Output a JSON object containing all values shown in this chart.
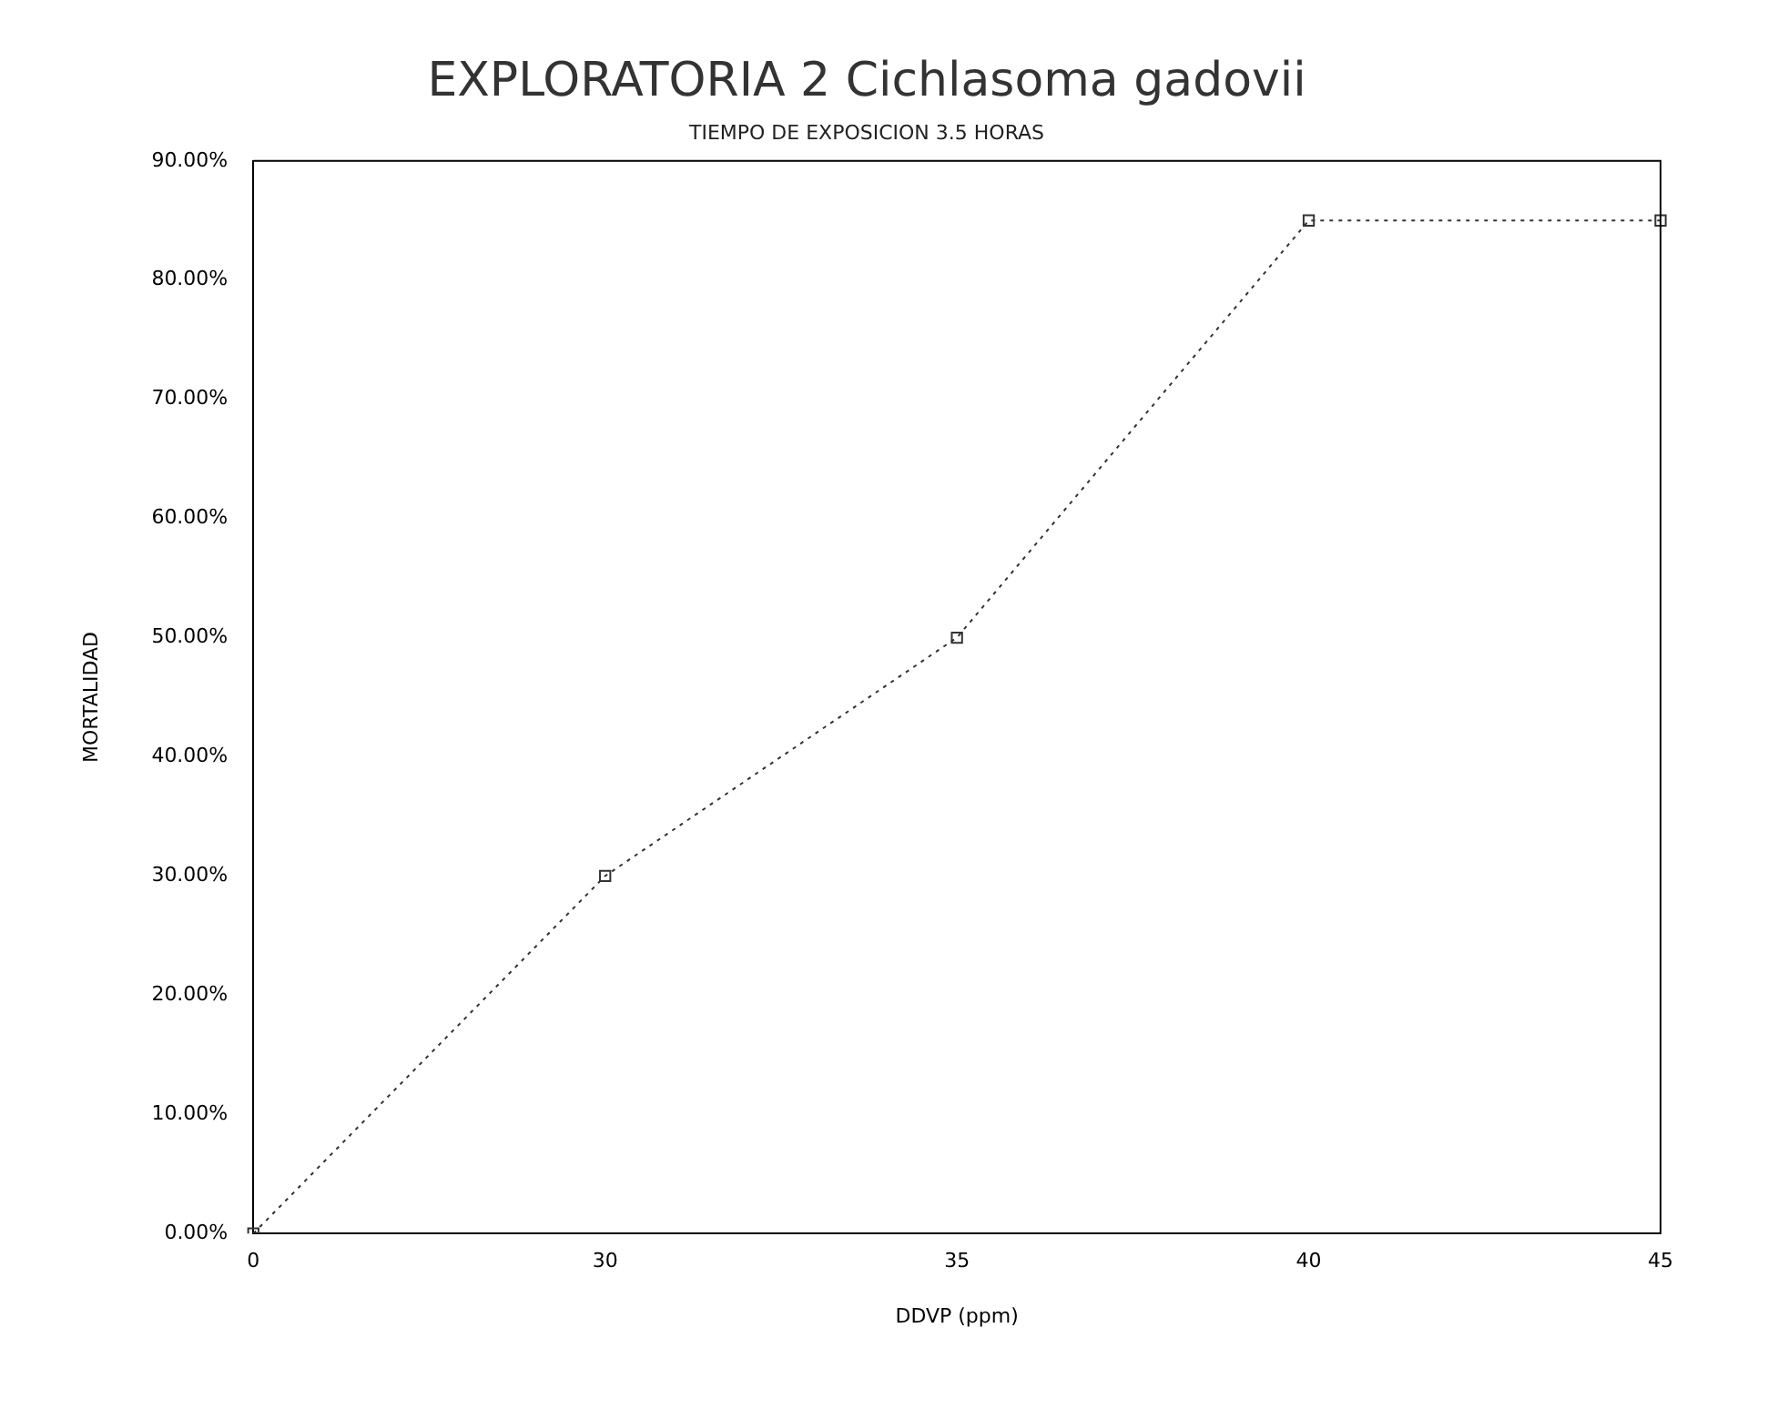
{
  "chart_data": {
    "type": "line",
    "title": "EXPLORATORIA 2 Cichlasoma gadovii",
    "subtitle": "TIEMPO DE EXPOSICION 3.5 HORAS",
    "xlabel": "DDVP (ppm)",
    "ylabel": "MORTALIDAD",
    "categories": [
      "0",
      "30",
      "35",
      "40",
      "45"
    ],
    "series": [
      {
        "color": "#333333",
        "values": [
          0,
          30,
          50,
          85,
          85
        ]
      }
    ],
    "ylim": [
      0,
      90
    ],
    "yticks": [
      {
        "value": 0,
        "label": "0.00%"
      },
      {
        "value": 10,
        "label": "10.00%"
      },
      {
        "value": 20,
        "label": "20.00%"
      },
      {
        "value": 30,
        "label": "30.00%"
      },
      {
        "value": 40,
        "label": "40.00%"
      },
      {
        "value": 50,
        "label": "50.00%"
      },
      {
        "value": 60,
        "label": "60.00%"
      },
      {
        "value": 70,
        "label": "70.00%"
      },
      {
        "value": 80,
        "label": "80.00%"
      },
      {
        "value": 90,
        "label": "90.00%"
      }
    ],
    "grid": false,
    "legend": false,
    "marker": "square",
    "line_style": "dotted"
  }
}
